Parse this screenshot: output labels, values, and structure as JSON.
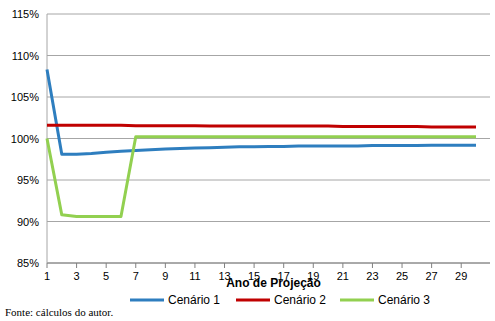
{
  "chart_data": {
    "type": "line",
    "x_label": "Ano de Projeção",
    "source": "Fonte: cálculos do autor.",
    "x": [
      1,
      2,
      3,
      4,
      5,
      6,
      7,
      8,
      9,
      10,
      11,
      12,
      13,
      14,
      15,
      16,
      17,
      18,
      19,
      20,
      21,
      22,
      23,
      24,
      25,
      26,
      27,
      28,
      29,
      30
    ],
    "xlim": [
      1,
      30
    ],
    "xticks": [
      1,
      3,
      5,
      7,
      9,
      11,
      13,
      15,
      17,
      19,
      21,
      23,
      25,
      27,
      29
    ],
    "ylim": [
      85,
      115
    ],
    "yticks": [
      {
        "value": 85,
        "label": "85%"
      },
      {
        "value": 90,
        "label": "90%"
      },
      {
        "value": 95,
        "label": "95%"
      },
      {
        "value": 100,
        "label": "100%"
      },
      {
        "value": 105,
        "label": "105%"
      },
      {
        "value": 110,
        "label": "110%"
      },
      {
        "value": 115,
        "label": "115%"
      }
    ],
    "grid": true,
    "legend": "bottom",
    "series": [
      {
        "name": "Cenário 1",
        "color": "#2e7ebf",
        "values": [
          108.3,
          98.1,
          98.1,
          98.2,
          98.35,
          98.45,
          98.55,
          98.65,
          98.75,
          98.8,
          98.85,
          98.9,
          98.95,
          99.0,
          99.0,
          99.05,
          99.05,
          99.1,
          99.1,
          99.1,
          99.1,
          99.1,
          99.15,
          99.15,
          99.15,
          99.15,
          99.2,
          99.2,
          99.2,
          99.2
        ]
      },
      {
        "name": "Cenário 2",
        "color": "#c00000",
        "values": [
          101.6,
          101.6,
          101.6,
          101.6,
          101.6,
          101.6,
          101.55,
          101.55,
          101.55,
          101.55,
          101.55,
          101.5,
          101.5,
          101.5,
          101.5,
          101.5,
          101.5,
          101.5,
          101.5,
          101.5,
          101.45,
          101.45,
          101.45,
          101.45,
          101.45,
          101.45,
          101.4,
          101.4,
          101.4,
          101.4
        ]
      },
      {
        "name": "Cenário 3",
        "color": "#92d050",
        "values": [
          100.0,
          90.8,
          90.6,
          90.6,
          90.6,
          90.6,
          100.2,
          100.2,
          100.2,
          100.2,
          100.2,
          100.2,
          100.2,
          100.2,
          100.2,
          100.2,
          100.2,
          100.2,
          100.2,
          100.2,
          100.2,
          100.2,
          100.2,
          100.2,
          100.2,
          100.2,
          100.2,
          100.2,
          100.2,
          100.2
        ]
      }
    ]
  }
}
